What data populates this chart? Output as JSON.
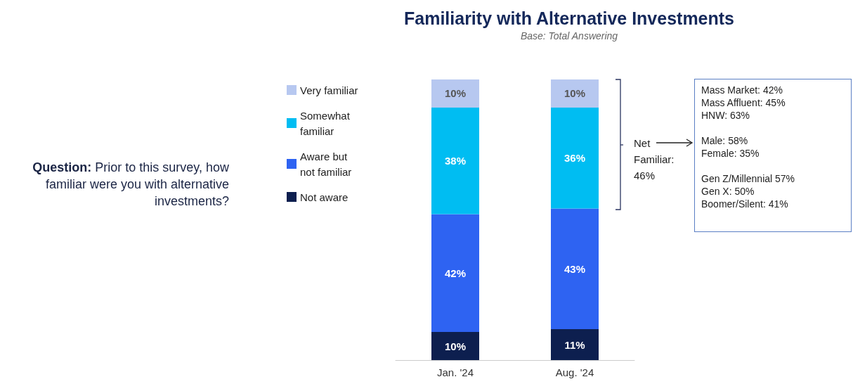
{
  "chart_data": {
    "type": "bar",
    "stacked": true,
    "title": "Familiarity with Alternative Investments",
    "subtitle": "Base: Total Answering",
    "categories": [
      "Jan. '24",
      "Aug. '24"
    ],
    "series": [
      {
        "name": "Not aware",
        "color": "#0d1f4f",
        "values": [
          10,
          11
        ],
        "value_labels": [
          "10%",
          "11%"
        ]
      },
      {
        "name": "Aware but not familiar",
        "color": "#2e63f2",
        "values": [
          42,
          43
        ],
        "value_labels": [
          "42%",
          "43%"
        ]
      },
      {
        "name": "Somewhat familiar",
        "color": "#00bdf2",
        "values": [
          38,
          36
        ],
        "value_labels": [
          "38%",
          "36%"
        ]
      },
      {
        "name": "Very familiar",
        "color": "#b7c8f0",
        "values": [
          10,
          10
        ],
        "value_labels": [
          "10%",
          "10%"
        ]
      }
    ],
    "legend": "left",
    "annotations": [
      "Question: Prior to this survey, how familiar were you with alternative investments?",
      "Net Familiar: 46%",
      "Mass Market: 42%",
      "Mass Affluent: 45%",
      "HNW: 63%",
      "Male: 58%",
      "Female: 35%",
      "Gen Z/Millennial 57%",
      "Gen X: 50%",
      "Boomer/Silent: 41%"
    ]
  }
}
